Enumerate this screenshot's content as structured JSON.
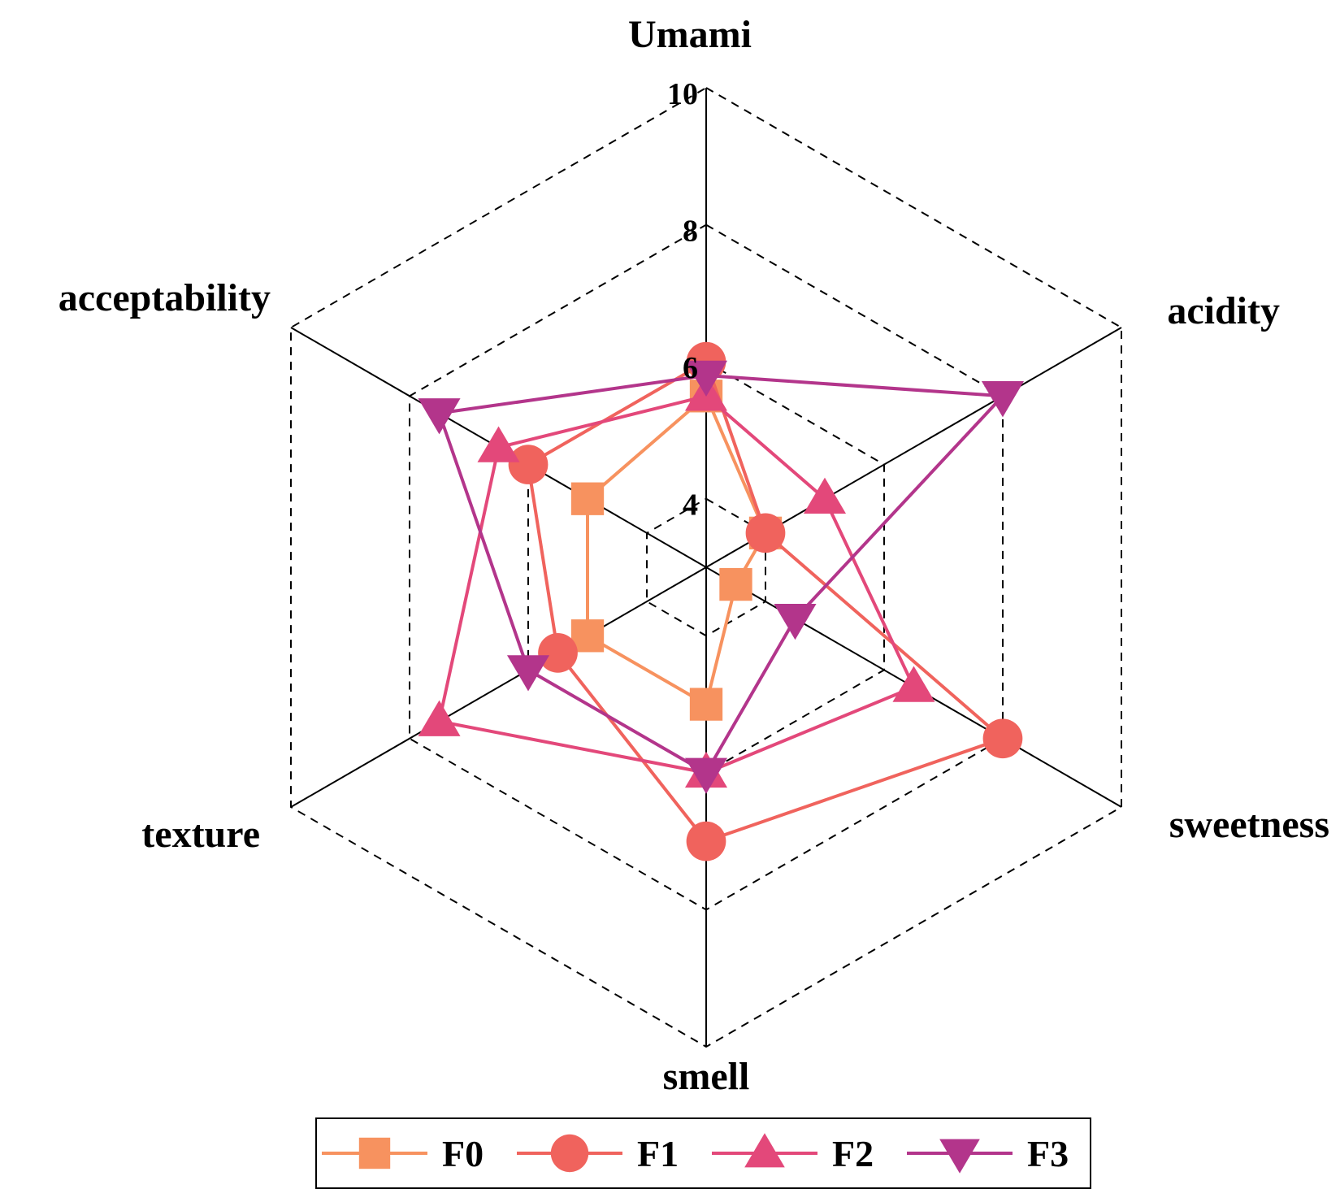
{
  "chart_data": {
    "type": "radar",
    "title": "",
    "axes": [
      "Umami",
      "acidity",
      "sweetness",
      "smell",
      "texture",
      "acceptability"
    ],
    "ticks": [
      "4",
      "6",
      "8",
      "10"
    ],
    "rlim": [
      3,
      10
    ],
    "grid": "dashed hexagons",
    "legend_position": "bottom",
    "series": [
      {
        "name": "F0",
        "marker": "square",
        "color": "#F7925F",
        "values": [
          5.5,
          4.0,
          3.5,
          5.0,
          5.0,
          5.0
        ]
      },
      {
        "name": "F1",
        "marker": "circle",
        "color": "#F0635D",
        "values": [
          6.0,
          4.0,
          8.0,
          7.0,
          5.5,
          6.0
        ]
      },
      {
        "name": "F2",
        "marker": "triangle",
        "color": "#E3487A",
        "values": [
          5.5,
          5.0,
          6.5,
          6.0,
          7.5,
          6.5
        ]
      },
      {
        "name": "F3",
        "marker": "triangle-down",
        "color": "#B3358B",
        "values": [
          5.8,
          8.0,
          4.5,
          6.0,
          6.0,
          7.5
        ]
      }
    ]
  }
}
